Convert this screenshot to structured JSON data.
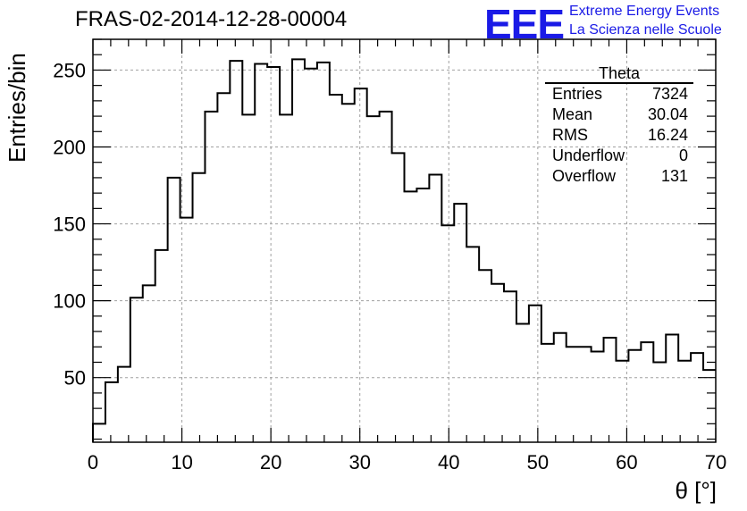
{
  "title": "FRAS-02-2014-12-28-00004",
  "logo": {
    "text": "EEE",
    "line1": "Extreme Energy Events",
    "line2": "La Scienza nelle Scuole",
    "color": "#1a1ae6"
  },
  "stats": {
    "title": "Theta",
    "rows": [
      {
        "label": "Entries",
        "value": "7324"
      },
      {
        "label": "Mean",
        "value": "30.04"
      },
      {
        "label": "RMS",
        "value": "16.24"
      },
      {
        "label": "Underflow",
        "value": "0"
      },
      {
        "label": "Overflow",
        "value": "131"
      }
    ]
  },
  "chart_data": {
    "type": "histogram",
    "xlabel": "θ [°]",
    "ylabel": "Entries/bin",
    "xlim": [
      0,
      70
    ],
    "ylim": [
      8,
      270
    ],
    "xticks": [
      0,
      10,
      20,
      30,
      40,
      50,
      60,
      70
    ],
    "yticks": [
      50,
      100,
      150,
      200,
      250
    ],
    "bin_width": 1.4,
    "bin_edges_start": 0,
    "values": [
      20,
      47,
      57,
      102,
      110,
      133,
      180,
      154,
      183,
      223,
      235,
      256,
      221,
      254,
      252,
      221,
      257,
      251,
      255,
      234,
      228,
      238,
      220,
      223,
      196,
      171,
      173,
      182,
      149,
      163,
      135,
      120,
      111,
      106,
      85,
      97,
      72,
      79,
      70,
      70,
      67,
      76,
      61,
      68,
      73,
      60,
      78,
      61,
      66,
      55
    ],
    "grid": true
  }
}
